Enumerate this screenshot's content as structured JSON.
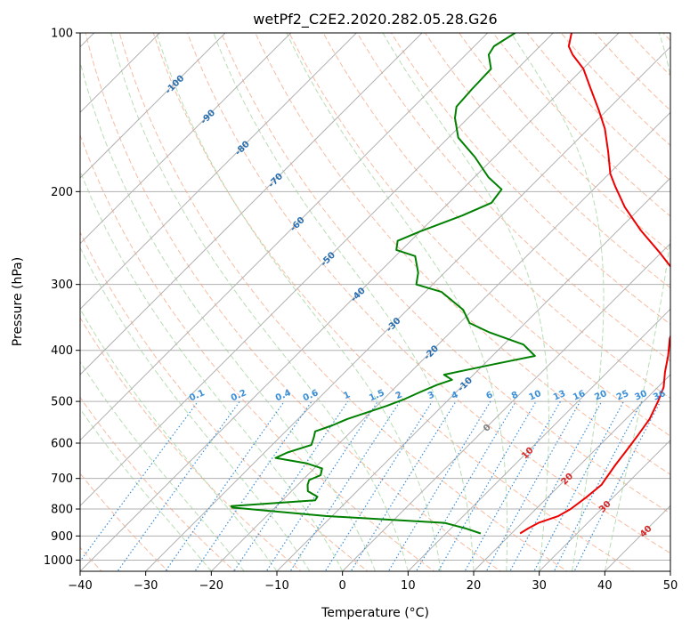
{
  "chart_data": {
    "type": "line",
    "subtype": "skew-t log-p diagram",
    "title": "wetPf2_C2E2.2020.282.05.28.G26",
    "xlabel": "Temperature (°C)",
    "ylabel": "Pressure (hPa)",
    "xlim": [
      -40,
      50
    ],
    "ylim": [
      1050,
      100
    ],
    "y_scale": "log",
    "grid": true,
    "x_ticks": [
      "−40",
      "−30",
      "−20",
      "−10",
      "0",
      "10",
      "20",
      "30",
      "40",
      "50"
    ],
    "y_ticks": [
      "100",
      "200",
      "300",
      "400",
      "500",
      "600",
      "700",
      "800",
      "900",
      "1000"
    ],
    "isotherm_labels": [
      "-100",
      "-90",
      "-80",
      "-70",
      "-60",
      "-50",
      "-40",
      "-30",
      "-20",
      "-10",
      "0",
      "10",
      "20",
      "30",
      "40"
    ],
    "mixing_ratio_labels": [
      "0.1",
      "0.2",
      "0.4",
      "0.6",
      "1",
      "1.5",
      "2",
      "3",
      "4",
      "6",
      "8",
      "10",
      "13",
      "16",
      "20",
      "25",
      "30",
      "36"
    ],
    "colors": {
      "temperature": "#ee0000",
      "dewpoint": "#008000",
      "grid": "#b0b0b0",
      "isotherm": "#b0b0b0",
      "dry_adiabat": "#f4a582",
      "moist_adiabat": "#a6d5a0",
      "mixing_ratio": "#3a8fd8",
      "isotherm_label_cold": "#2a6fb0",
      "isotherm_label_zero": "#7f7f7f",
      "isotherm_label_warm": "#d62728"
    },
    "series": [
      {
        "name": "",
        "role": "temperature",
        "points": [
          [
            21.3,
            890
          ],
          [
            21.8,
            870
          ],
          [
            22.5,
            850
          ],
          [
            24.5,
            825
          ],
          [
            25.3,
            800
          ],
          [
            25.9,
            760
          ],
          [
            26.3,
            720
          ],
          [
            26.0,
            700
          ],
          [
            25.4,
            660
          ],
          [
            24.9,
            620
          ],
          [
            24.3,
            580
          ],
          [
            23.6,
            540
          ],
          [
            22.2,
            500
          ],
          [
            20.9,
            470
          ],
          [
            18.8,
            440
          ],
          [
            16.8,
            410
          ],
          [
            14.4,
            380
          ],
          [
            12.5,
            350
          ],
          [
            10.6,
            320
          ],
          [
            7.7,
            300
          ],
          [
            5.2,
            285
          ],
          [
            -0.5,
            260
          ],
          [
            -6.5,
            237
          ],
          [
            -12.5,
            214
          ],
          [
            -17.0,
            196
          ],
          [
            -19.8,
            185
          ],
          [
            -23.5,
            168
          ],
          [
            -27.5,
            152
          ],
          [
            -31.3,
            140
          ],
          [
            -36.0,
            127
          ],
          [
            -39.9,
            117
          ],
          [
            -43.7,
            110
          ],
          [
            -45.6,
            106
          ],
          [
            -47.2,
            100
          ]
        ]
      },
      {
        "name": "",
        "role": "dewpoint",
        "points": [
          [
            15.3,
            890
          ],
          [
            12.1,
            870
          ],
          [
            8.2,
            850
          ],
          [
            -11.0,
            825
          ],
          [
            -26.5,
            795
          ],
          [
            -26.9,
            790
          ],
          [
            -15.0,
            770
          ],
          [
            -15.2,
            758
          ],
          [
            -17.5,
            740
          ],
          [
            -18.5,
            720
          ],
          [
            -19.0,
            705
          ],
          [
            -18.0,
            690
          ],
          [
            -18.8,
            670
          ],
          [
            -22.0,
            655
          ],
          [
            -27.5,
            640
          ],
          [
            -26.5,
            625
          ],
          [
            -24.0,
            605
          ],
          [
            -24.8,
            585
          ],
          [
            -25.5,
            570
          ],
          [
            -23.8,
            555
          ],
          [
            -22.5,
            540
          ],
          [
            -18.5,
            510
          ],
          [
            -16.8,
            495
          ],
          [
            -15.5,
            480
          ],
          [
            -14.0,
            465
          ],
          [
            -12.5,
            455
          ],
          [
            -14.5,
            445
          ],
          [
            -8.5,
            425
          ],
          [
            -3.5,
            410
          ],
          [
            -7.0,
            390
          ],
          [
            -14.0,
            370
          ],
          [
            -18.5,
            355
          ],
          [
            -21.5,
            335
          ],
          [
            -27.5,
            310
          ],
          [
            -32.5,
            300
          ],
          [
            -34.0,
            285
          ],
          [
            -37.0,
            265
          ],
          [
            -40.8,
            258
          ],
          [
            -42.0,
            248
          ],
          [
            -40.0,
            238
          ],
          [
            -36.0,
            222
          ],
          [
            -33.5,
            210
          ],
          [
            -34.0,
            198
          ],
          [
            -37.8,
            188
          ],
          [
            -43.0,
            172
          ],
          [
            -48.5,
            158
          ],
          [
            -52.0,
            145
          ],
          [
            -53.5,
            138
          ],
          [
            -53.8,
            128
          ],
          [
            -54.0,
            117
          ],
          [
            -56.5,
            110
          ],
          [
            -57.0,
            106
          ],
          [
            -55.8,
            100
          ]
        ]
      }
    ]
  }
}
